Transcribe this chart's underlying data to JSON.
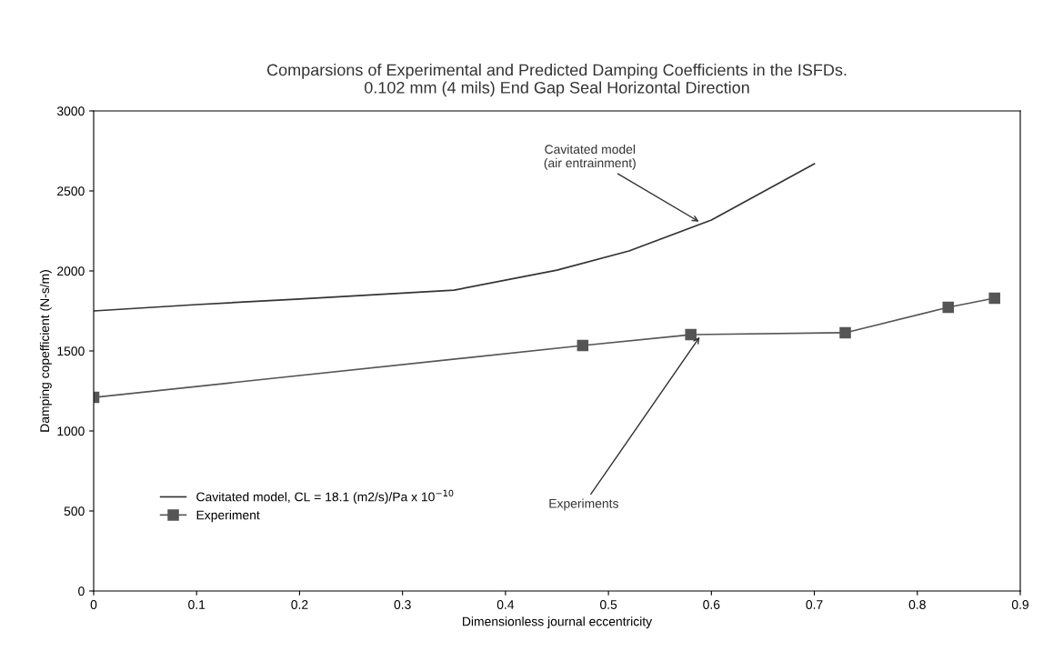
{
  "chart_data": {
    "type": "line",
    "title": "Comparsions of Experimental and Predicted Damping Coefficients in the ISFDs.\n0.102 mm (4 mils) End Gap Seal Horizontal Direction",
    "xlabel": "Dimensionless journal eccentricity",
    "ylabel": "Damping copefficient (N-s/m)",
    "series": [
      {
        "name": "Cavitated model, CL = 18.1 (m2/s)/Pa x 10$^{−10}$",
        "color": "#333333",
        "marker": "none",
        "x": [
          0,
          0.1,
          0.2,
          0.35,
          0.45,
          0.52,
          0.6,
          0.7
        ],
        "values": [
          1750,
          1790,
          1825,
          1880,
          2005,
          2125,
          2318,
          2670
        ]
      },
      {
        "name": "Experiment",
        "color": "#555555",
        "marker": "square",
        "x": [
          0,
          0.475,
          0.58,
          0.73,
          0.83,
          0.875
        ],
        "values": [
          1210,
          1534,
          1602,
          1614,
          1773,
          1830
        ]
      }
    ],
    "annotations": [
      {
        "text": "Cavitated model\n(air entrainment)",
        "x": 0.59,
        "y": 2300
      },
      {
        "text": "Experiments",
        "x": 0.59,
        "y": 1600
      }
    ],
    "xlim": [
      0,
      0.9
    ],
    "xticks": [
      0,
      0.1,
      0.2,
      0.3,
      0.4,
      0.5,
      0.6,
      0.7,
      0.8,
      0.9
    ],
    "ylim": [
      0,
      3000
    ],
    "yticks": [
      0,
      500,
      1000,
      1500,
      2000,
      2500,
      3000
    ],
    "grid": false,
    "legend": "bottom left",
    "line_style": "solid"
  }
}
